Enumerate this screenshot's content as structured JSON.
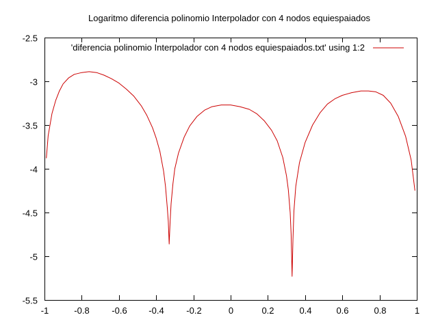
{
  "chart_data": {
    "type": "line",
    "title": "Logaritmo diferencia polinomio Interpolador con 4 nodos equiespaiados",
    "xlabel": "",
    "ylabel": "",
    "xlim": [
      -1,
      1
    ],
    "ylim": [
      -5.5,
      -2.5
    ],
    "x_ticks": [
      "-1",
      "-0.8",
      "-0.6",
      "-0.4",
      "-0.2",
      "0",
      "0.2",
      "0.4",
      "0.6",
      "0.8",
      "1"
    ],
    "y_ticks": [
      "-2.5",
      "-3",
      "-3.5",
      "-4",
      "-4.5",
      "-5",
      "-5.5"
    ],
    "grid": false,
    "legend_position": "top-right",
    "series": [
      {
        "name": "'diferencia polinomio Interpolador con 4 nodos equiespaiados.txt' using 1:2",
        "color": "#cc0000",
        "points": [
          [
            -0.99,
            -3.88
          ],
          [
            -0.98,
            -3.62
          ],
          [
            -0.96,
            -3.37
          ],
          [
            -0.94,
            -3.22
          ],
          [
            -0.92,
            -3.11
          ],
          [
            -0.9,
            -3.03
          ],
          [
            -0.87,
            -2.96
          ],
          [
            -0.84,
            -2.92
          ],
          [
            -0.8,
            -2.9
          ],
          [
            -0.76,
            -2.89
          ],
          [
            -0.72,
            -2.9
          ],
          [
            -0.68,
            -2.93
          ],
          [
            -0.64,
            -2.97
          ],
          [
            -0.6,
            -3.02
          ],
          [
            -0.56,
            -3.09
          ],
          [
            -0.52,
            -3.17
          ],
          [
            -0.48,
            -3.28
          ],
          [
            -0.45,
            -3.39
          ],
          [
            -0.42,
            -3.53
          ],
          [
            -0.4,
            -3.65
          ],
          [
            -0.38,
            -3.8
          ],
          [
            -0.36,
            -4.03
          ],
          [
            -0.35,
            -4.2
          ],
          [
            -0.34,
            -4.45
          ],
          [
            -0.335,
            -4.6
          ],
          [
            -0.33,
            -4.86
          ],
          [
            -0.325,
            -4.6
          ],
          [
            -0.32,
            -4.4
          ],
          [
            -0.31,
            -4.17
          ],
          [
            -0.3,
            -4.0
          ],
          [
            -0.28,
            -3.82
          ],
          [
            -0.25,
            -3.64
          ],
          [
            -0.22,
            -3.51
          ],
          [
            -0.18,
            -3.4
          ],
          [
            -0.14,
            -3.33
          ],
          [
            -0.1,
            -3.29
          ],
          [
            -0.05,
            -3.27
          ],
          [
            0.0,
            -3.27
          ],
          [
            0.05,
            -3.29
          ],
          [
            0.1,
            -3.32
          ],
          [
            0.14,
            -3.37
          ],
          [
            0.18,
            -3.45
          ],
          [
            0.22,
            -3.56
          ],
          [
            0.25,
            -3.68
          ],
          [
            0.28,
            -3.87
          ],
          [
            0.3,
            -4.08
          ],
          [
            0.31,
            -4.24
          ],
          [
            0.32,
            -4.5
          ],
          [
            0.325,
            -4.75
          ],
          [
            0.33,
            -5.23
          ],
          [
            0.335,
            -4.8
          ],
          [
            0.34,
            -4.48
          ],
          [
            0.35,
            -4.2
          ],
          [
            0.37,
            -3.93
          ],
          [
            0.4,
            -3.7
          ],
          [
            0.44,
            -3.5
          ],
          [
            0.48,
            -3.36
          ],
          [
            0.52,
            -3.26
          ],
          [
            0.56,
            -3.2
          ],
          [
            0.6,
            -3.16
          ],
          [
            0.65,
            -3.13
          ],
          [
            0.7,
            -3.11
          ],
          [
            0.74,
            -3.11
          ],
          [
            0.78,
            -3.12
          ],
          [
            0.82,
            -3.16
          ],
          [
            0.86,
            -3.25
          ],
          [
            0.9,
            -3.4
          ],
          [
            0.94,
            -3.63
          ],
          [
            0.97,
            -3.9
          ],
          [
            0.99,
            -4.25
          ]
        ]
      }
    ]
  }
}
